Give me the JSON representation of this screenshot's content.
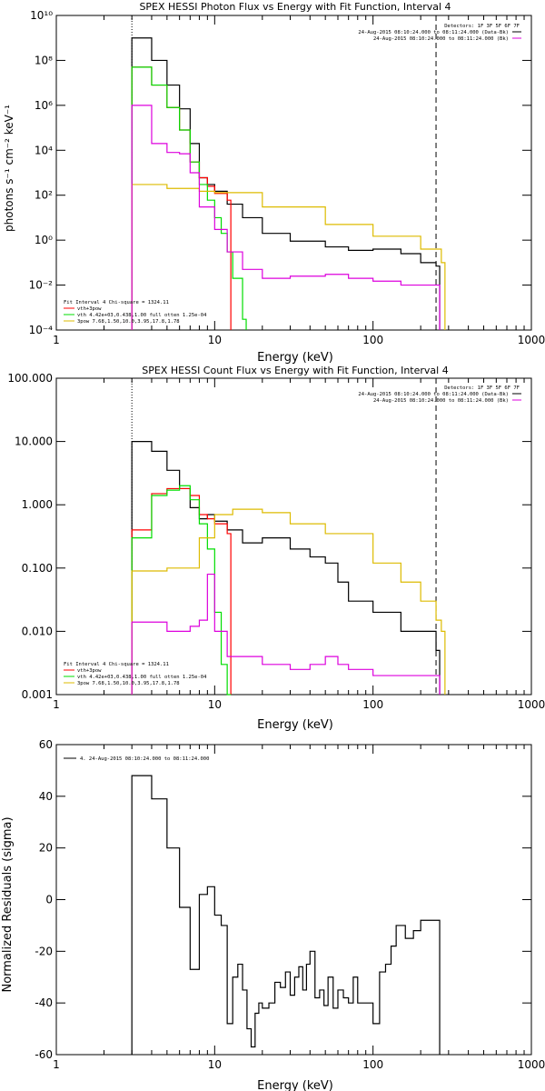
{
  "colors": {
    "data": "#000000",
    "total": "#ff0000",
    "vth": "#00dd00",
    "pow": "#ddbb00",
    "bkg": "#dd00dd"
  },
  "chart_data": [
    {
      "type": "line",
      "title": "SPEX HESSI Photon Flux vs Energy with Fit Function, Interval 4",
      "xlabel": "Energy (keV)",
      "ylabel": "photons s⁻¹ cm⁻² keV⁻¹",
      "xscale": "log",
      "yscale": "log",
      "xlim": [
        1,
        1000
      ],
      "ylim": [
        0.0001,
        10000000000
      ],
      "xticks": [
        "1",
        "10",
        "100",
        "1000"
      ],
      "yticks": [
        "10⁻⁴",
        "10⁻²",
        "10⁰",
        "10²",
        "10⁴",
        "10⁶",
        "10⁸",
        "10¹⁰"
      ],
      "legend_right": [
        "Detectors: 1F 3F 5F 6F 7F",
        "24-Aug-2015 08:10:24.000 to 08:11:24.000 (Data-Bk)",
        "24-Aug-2015 08:10:24.000 to 08:11:24.000 (Bk)"
      ],
      "legend_left": [
        "Fit Interval 4   Chi-square = 1324.11",
        "vth+3pow",
        "vth 4.42e+03,0.438,1.00  full otten 1.25e-04",
        "3pow 7.68,1.50,10.0,3.95,17.8,1.78"
      ],
      "vlines": [
        3,
        250
      ],
      "series": [
        {
          "name": "24-Aug-2015 08:10:24.000 to 08:11:24.000 (Data-Bk)",
          "color": "data",
          "x": [
            3,
            4,
            5,
            6,
            7,
            8,
            9,
            10,
            12,
            15,
            20,
            30,
            50,
            70,
            100,
            150,
            200,
            250
          ],
          "y": [
            1000000000,
            100000000,
            8000000,
            700000,
            20000,
            600,
            300,
            150,
            40,
            10,
            2,
            0.9,
            0.5,
            0.35,
            0.4,
            0.25,
            0.1,
            0.07
          ]
        },
        {
          "name": "vth+3pow",
          "color": "total",
          "x": [
            3,
            4,
            5,
            6,
            7,
            8,
            9,
            10,
            12
          ],
          "y": [
            50000000,
            8000000,
            800000,
            80000,
            3000,
            600,
            250,
            120,
            60
          ]
        },
        {
          "name": "vth",
          "color": "vth",
          "x": [
            3,
            4,
            5,
            6,
            7,
            8,
            9,
            10,
            11,
            12,
            13,
            15
          ],
          "y": [
            50000000,
            8000000,
            800000,
            80000,
            3000,
            300,
            60,
            10,
            2,
            0.3,
            0.02,
            0.0003
          ]
        },
        {
          "name": "3pow",
          "color": "pow",
          "x": [
            3,
            5,
            8,
            10,
            20,
            50,
            100,
            200,
            270
          ],
          "y": [
            300,
            200,
            150,
            130,
            30,
            5,
            1.5,
            0.4,
            0.1
          ]
        },
        {
          "name": "24-Aug-2015 08:10:24.000 to 08:11:24.000 (Bk)",
          "color": "bkg",
          "x": [
            3,
            4,
            5,
            6,
            7,
            8,
            10,
            12,
            15,
            20,
            30,
            50,
            70,
            100,
            150,
            250
          ],
          "y": [
            1000000,
            20000,
            8000,
            7000,
            1000,
            30,
            3,
            0.3,
            0.05,
            0.02,
            0.025,
            0.03,
            0.02,
            0.015,
            0.01,
            0.01
          ]
        }
      ]
    },
    {
      "type": "line",
      "title": "SPEX HESSI Count Flux vs Energy with Fit Function, Interval 4",
      "xlabel": "Energy (keV)",
      "ylabel": "",
      "xscale": "log",
      "yscale": "log",
      "xlim": [
        1,
        1000
      ],
      "ylim": [
        0.001,
        100
      ],
      "xticks": [
        "1",
        "10",
        "100",
        "1000"
      ],
      "yticks": [
        "0.001",
        "0.010",
        "0.100",
        "1.000",
        "10.000",
        "100.000"
      ],
      "legend_right": [
        "Detectors: 1F 3F 5F 6F 7F",
        "24-Aug-2015 08:10:24.000 to 08:11:24.000 (Data-Bk)",
        "24-Aug-2015 08:10:24.000 to 08:11:24.000 (Bk)"
      ],
      "legend_left": [
        "Fit Interval 4   Chi-square = 1324.11",
        "vth+3pow",
        "vth 4.42e+03,0.438,1.00  full otten 1.25e-04",
        "3pow 7.68,1.50,10.0,3.95,17.8,1.78"
      ],
      "vlines": [
        3,
        250
      ],
      "series": [
        {
          "name": "24-Aug-2015 08:10:24.000 to 08:11:24.000 (Data-Bk)",
          "color": "data",
          "x": [
            3,
            4,
            5,
            6,
            7,
            8,
            9,
            10,
            12,
            15,
            20,
            30,
            40,
            50,
            60,
            70,
            100,
            150,
            200,
            250
          ],
          "y": [
            10,
            7,
            3.5,
            1.8,
            0.9,
            0.6,
            0.7,
            0.55,
            0.4,
            0.25,
            0.3,
            0.2,
            0.15,
            0.12,
            0.06,
            0.03,
            0.02,
            0.01,
            0.01,
            0.005
          ]
        },
        {
          "name": "vth+3pow",
          "color": "total",
          "x": [
            3,
            4,
            5,
            6,
            7,
            8,
            9,
            10,
            12
          ],
          "y": [
            0.4,
            1.5,
            1.8,
            1.8,
            1.4,
            0.7,
            0.6,
            0.5,
            0.35
          ]
        },
        {
          "name": "vth",
          "color": "vth",
          "x": [
            3,
            4,
            5,
            6,
            7,
            8,
            9,
            10,
            11,
            12
          ],
          "y": [
            0.3,
            1.4,
            1.7,
            2.0,
            1.2,
            0.5,
            0.2,
            0.02,
            0.003,
            0.001
          ]
        },
        {
          "name": "3pow",
          "color": "pow",
          "x": [
            3,
            5,
            8,
            10,
            13,
            20,
            30,
            50,
            100,
            150,
            200,
            250,
            270
          ],
          "y": [
            0.09,
            0.1,
            0.3,
            0.7,
            0.85,
            0.75,
            0.5,
            0.35,
            0.12,
            0.06,
            0.03,
            0.015,
            0.01
          ]
        },
        {
          "name": "24-Aug-2015 08:10:24.000 to 08:11:24.000 (Bk)",
          "color": "bkg",
          "x": [
            3,
            5,
            7,
            8,
            9,
            10,
            12,
            20,
            30,
            40,
            50,
            60,
            70,
            100,
            150,
            250
          ],
          "y": [
            0.014,
            0.01,
            0.012,
            0.015,
            0.08,
            0.01,
            0.004,
            0.003,
            0.0025,
            0.003,
            0.004,
            0.003,
            0.0025,
            0.002,
            0.002,
            0.002
          ]
        }
      ]
    },
    {
      "type": "line",
      "title": "",
      "xlabel": "Energy (keV)",
      "ylabel": "Normalized Residuals (sigma)",
      "xscale": "log",
      "yscale": "linear",
      "xlim": [
        1,
        1000
      ],
      "ylim": [
        -60,
        60
      ],
      "xticks": [
        "1",
        "10",
        "100",
        "1000"
      ],
      "yticks": [
        "-60",
        "-40",
        "-20",
        "0",
        "20",
        "40",
        "60"
      ],
      "legend": "4. 24-Aug-2015 08:10:24.000 to 08:11:24.000",
      "series": [
        {
          "name": "4. 24-Aug-2015 08:10:24.000 to 08:11:24.000",
          "color": "data",
          "x": [
            3,
            3.5,
            4,
            4.5,
            5,
            5.5,
            6,
            6.5,
            7,
            7.5,
            8,
            8.5,
            9,
            9.5,
            10,
            11,
            12,
            13,
            14,
            15,
            16,
            17,
            18,
            19,
            20,
            22,
            24,
            26,
            28,
            30,
            32,
            34,
            36,
            38,
            40,
            43,
            46,
            49,
            52,
            56,
            60,
            65,
            70,
            75,
            80,
            90,
            100,
            110,
            120,
            130,
            140,
            160,
            180,
            200,
            220,
            250
          ],
          "y": [
            48,
            48,
            39,
            39,
            20,
            20,
            -3,
            -3,
            -27,
            -27,
            2,
            2,
            5,
            5,
            -6,
            -10,
            -48,
            -30,
            -25,
            -35,
            -50,
            -57,
            -44,
            -40,
            -42,
            -40,
            -32,
            -34,
            -28,
            -37,
            -30,
            -26,
            -35,
            -25,
            -20,
            -38,
            -35,
            -41,
            -30,
            -42,
            -35,
            -38,
            -40,
            -30,
            -40,
            -40,
            -48,
            -28,
            -25,
            -18,
            -10,
            -15,
            -12,
            -8,
            -8,
            -8
          ]
        }
      ]
    }
  ]
}
